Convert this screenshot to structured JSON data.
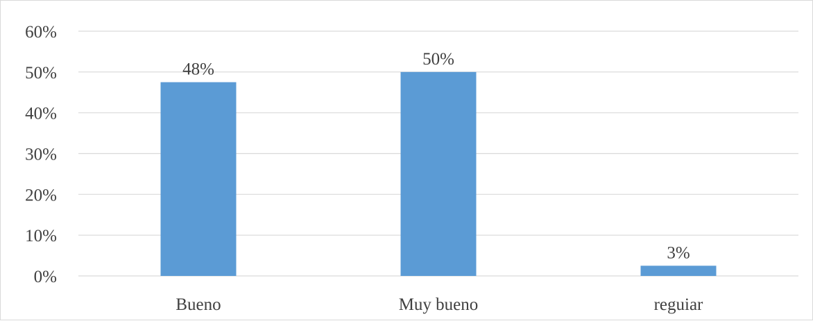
{
  "chart_data": {
    "type": "bar",
    "categories": [
      "Bueno",
      "Muy bueno",
      "reguiar"
    ],
    "values": [
      0.475,
      0.5,
      0.025
    ],
    "data_labels": [
      "48%",
      "50%",
      "3%"
    ],
    "yticks": [
      0,
      0.1,
      0.2,
      0.3,
      0.4,
      0.5,
      0.6
    ],
    "ytick_labels": [
      "0%",
      "10%",
      "20%",
      "30%",
      "40%",
      "50%",
      "60%"
    ],
    "ylim": [
      0,
      0.6
    ],
    "grid": true,
    "legend": "none",
    "bar_color": "#5b9bd5",
    "grid_color": "#d9d9d9",
    "text_color": "#404040"
  }
}
